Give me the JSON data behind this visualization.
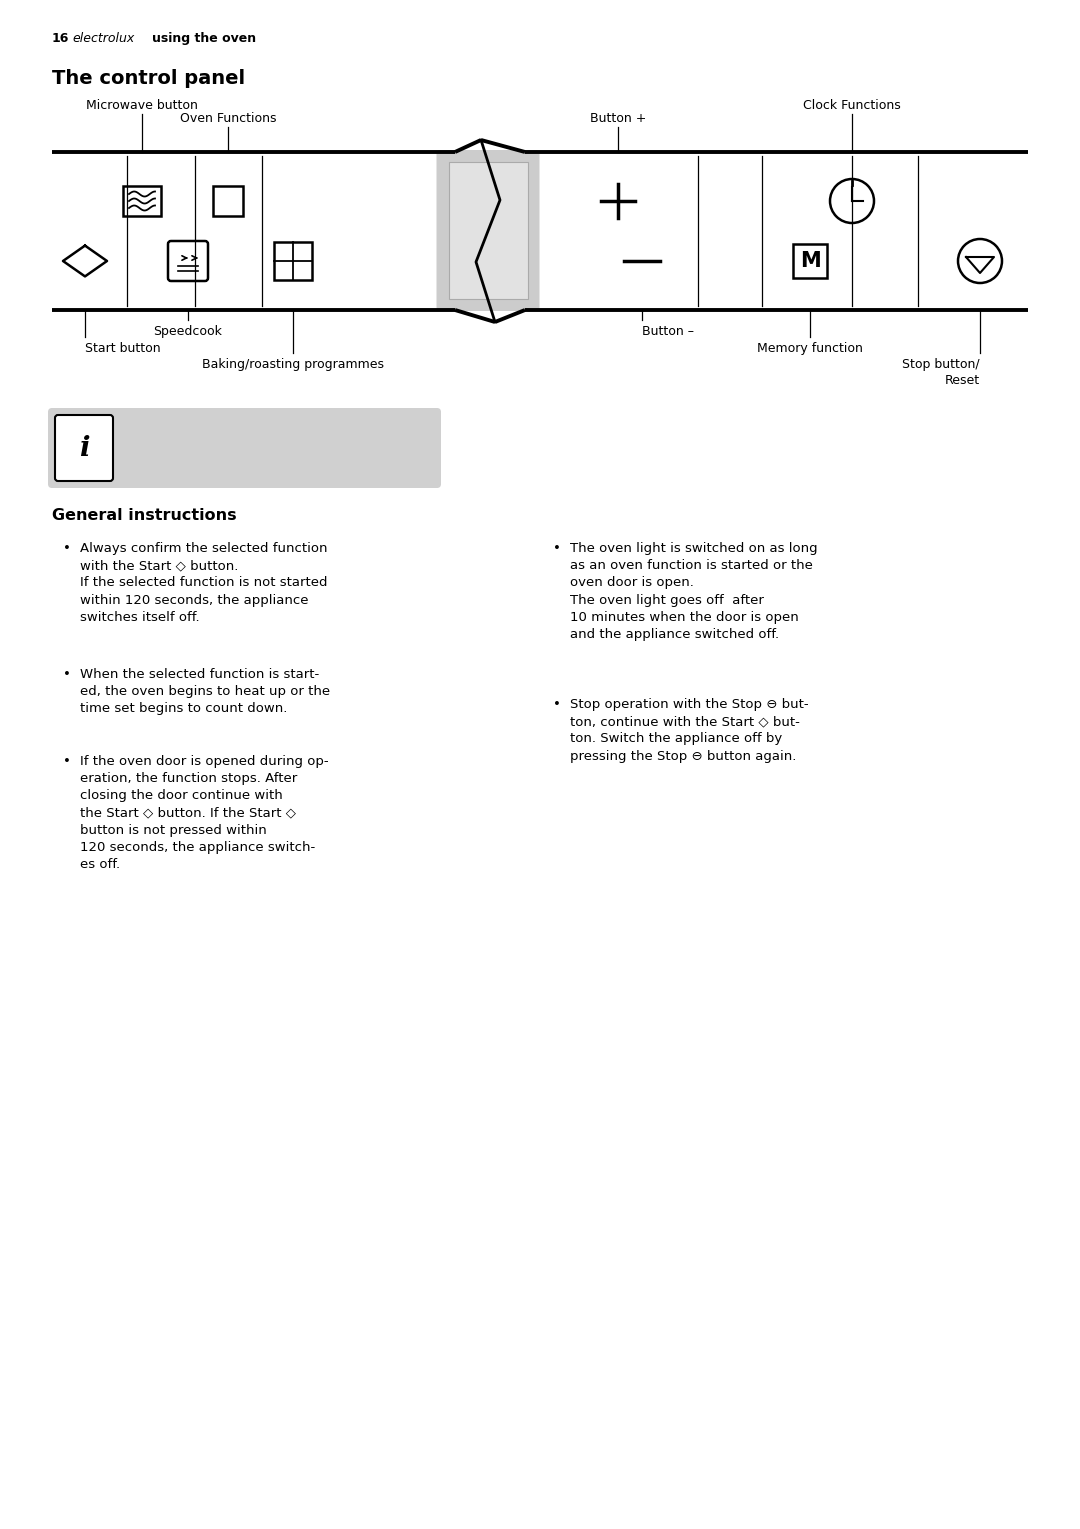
{
  "bg_color": "#ffffff",
  "fig_width": 10.8,
  "fig_height": 15.29,
  "page_num": "16",
  "page_label_italic": "electrolux",
  "page_label_bold": "using the oven",
  "title": "The control panel",
  "label_microwave": "Microwave button",
  "label_oven_func": "Oven Functions",
  "label_clock": "Clock Functions",
  "label_btn_plus": "Button +",
  "label_speedcook": "Speedcook",
  "label_start": "Start button",
  "label_baking": "Baking/roasting programmes",
  "label_btn_minus": "Button –",
  "label_memory": "Memory function",
  "label_stop": "Stop button/\nReset",
  "info_header": "General instructions"
}
